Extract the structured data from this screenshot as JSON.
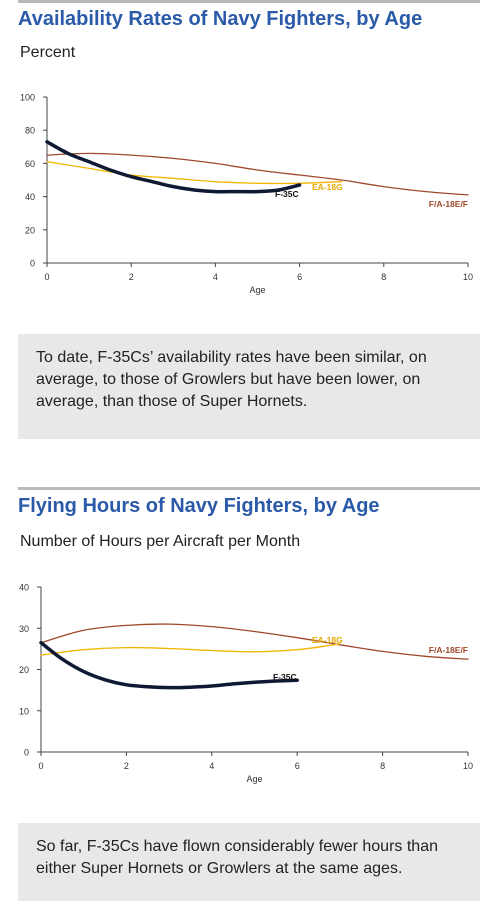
{
  "chart_data": [
    {
      "type": "line",
      "title": "Availability Rates of Navy Fighters, by Age",
      "subtitle": "Percent",
      "xlabel": "Age",
      "ylabel": "",
      "xlim": [
        0,
        10
      ],
      "ylim": [
        0,
        100
      ],
      "xticks": [
        0,
        2,
        4,
        6,
        8,
        10
      ],
      "yticks": [
        0,
        20,
        40,
        60,
        80,
        100
      ],
      "grid": false,
      "series": [
        {
          "name": "F-35C",
          "color": "#0e1a33",
          "x": [
            0,
            0.5,
            1,
            1.5,
            2,
            2.5,
            3,
            3.5,
            4,
            4.5,
            5,
            5.5,
            6
          ],
          "y": [
            73,
            66,
            61,
            56,
            52,
            49,
            46,
            44,
            43,
            43,
            43,
            44,
            47
          ]
        },
        {
          "name": "EA-18G",
          "color": "#f2b600",
          "x": [
            0,
            1,
            2,
            3,
            4,
            5,
            6,
            7
          ],
          "y": [
            61,
            57,
            53,
            51,
            49,
            48,
            48,
            49
          ]
        },
        {
          "name": "F/A-18E/F",
          "color": "#a0482a",
          "x": [
            0,
            1,
            2,
            3,
            4,
            5,
            6,
            7,
            8,
            9,
            10
          ],
          "y": [
            65,
            66,
            65,
            63,
            60,
            56,
            53,
            50,
            46,
            43,
            41
          ]
        }
      ],
      "note": "To date, F-35Cs’ availability rates have been similar, on average, to those of Growlers but have been lower, on average, than those of Super Hornets."
    },
    {
      "type": "line",
      "title": "Flying Hours of Navy Fighters, by Age",
      "subtitle": "Number of Hours per Aircraft per Month",
      "xlabel": "Age",
      "ylabel": "",
      "xlim": [
        0,
        10
      ],
      "ylim": [
        0,
        40
      ],
      "xticks": [
        0,
        2,
        4,
        6,
        8,
        10
      ],
      "yticks": [
        0,
        10,
        20,
        30,
        40
      ],
      "grid": false,
      "series": [
        {
          "name": "F-35C",
          "color": "#0e1a33",
          "x": [
            0,
            0.5,
            1,
            1.5,
            2,
            2.5,
            3,
            3.5,
            4,
            4.5,
            5,
            5.5,
            6
          ],
          "y": [
            26.5,
            22.5,
            19.5,
            17.5,
            16.3,
            15.8,
            15.6,
            15.7,
            16.0,
            16.5,
            16.9,
            17.2,
            17.4
          ]
        },
        {
          "name": "EA-18G",
          "color": "#f2b600",
          "x": [
            0,
            1,
            2,
            3,
            4,
            5,
            6,
            7
          ],
          "y": [
            23.5,
            24.8,
            25.3,
            25.1,
            24.6,
            24.3,
            24.8,
            26.2
          ]
        },
        {
          "name": "F/A-18E/F",
          "color": "#a0482a",
          "x": [
            0,
            1,
            2,
            3,
            4,
            5,
            6,
            7,
            8,
            9,
            10
          ],
          "y": [
            26.5,
            29.5,
            30.7,
            31.0,
            30.4,
            29.2,
            27.7,
            26.0,
            24.4,
            23.2,
            22.5
          ]
        }
      ],
      "note": "So far, F-35Cs have flown considerably fewer hours than either Super Hornets or Growlers at the same ages."
    }
  ]
}
